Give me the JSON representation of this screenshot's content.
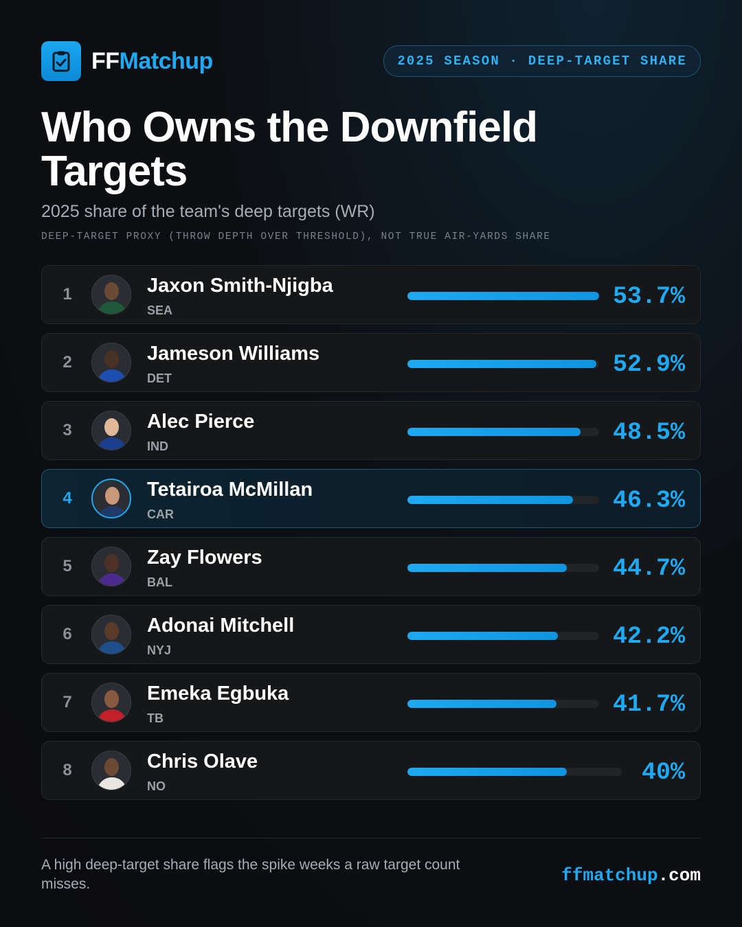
{
  "brand": {
    "ff": "FF",
    "matchup": "Matchup",
    "logo_icon": "clipboard-check-icon"
  },
  "badge": "2025 SEASON · DEEP-TARGET SHARE",
  "title": "Who Owns the Downfield Targets",
  "subtitle": "2025 share of the team's deep targets (WR)",
  "note": "DEEP-TARGET PROXY (THROW DEPTH OVER THRESHOLD), NOT TRUE AIR-YARDS SHARE",
  "colors": {
    "accent": "#1ea9f2",
    "background": "#0d0f13",
    "card": "#161719"
  },
  "chart_data": {
    "type": "bar",
    "orientation": "horizontal",
    "categories": [
      "Jaxon Smith-Njigba",
      "Jameson Williams",
      "Alec Pierce",
      "Tetairoa McMillan",
      "Zay Flowers",
      "Adonai Mitchell",
      "Emeka Egbuka",
      "Chris Olave"
    ],
    "teams": [
      "SEA",
      "DET",
      "IND",
      "CAR",
      "BAL",
      "NYJ",
      "TB",
      "NO"
    ],
    "ranks": [
      "1",
      "2",
      "3",
      "4",
      "5",
      "6",
      "7",
      "8"
    ],
    "values": [
      53.7,
      52.9,
      48.5,
      46.3,
      44.7,
      42.2,
      41.7,
      40
    ],
    "value_labels": [
      "53.7%",
      "52.9%",
      "48.5%",
      "46.3%",
      "44.7%",
      "42.2%",
      "41.7%",
      "40%"
    ],
    "highlighted": "Tetairoa McMillan"
  },
  "footer": {
    "note": "A high deep-target share flags the spike weeks a raw target count misses.",
    "site_main": "ffmatchup",
    "site_tld": ".com"
  }
}
